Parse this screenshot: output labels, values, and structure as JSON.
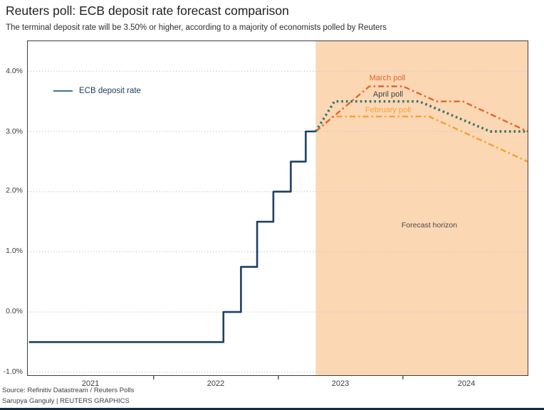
{
  "header": {
    "title": "Reuters poll: ECB deposit rate forecast comparison",
    "subtitle": "The terminal deposit rate will be 3.50% or higher, according to a majority of economists polled by Reuters"
  },
  "legend": {
    "ecb_label": "ECB deposit rate"
  },
  "chart_data": {
    "type": "line",
    "title": "Reuters poll: ECB deposit rate forecast comparison",
    "xlabel": "",
    "ylabel": "",
    "xlim": [
      2020.99,
      2025.0
    ],
    "ylim": [
      -1.05,
      4.5
    ],
    "grid": "dotted horizontal",
    "y_gridlines": [
      -1,
      0,
      1,
      2,
      3,
      4
    ],
    "y_tick_labels": [
      "4.0%",
      "3.0%",
      "2.0%",
      "1.0%",
      "0.0%",
      "-1.0%"
    ],
    "x_tick_years": [
      2022,
      2023,
      2024
    ],
    "x_tick_labels": [
      "2021",
      "2022",
      "2023",
      "2024"
    ],
    "forecast_region": {
      "start": 2023.3,
      "end": 2025.0,
      "fill": "#fbd7b4",
      "label": "Forecast horizon"
    },
    "series": [
      {
        "name": "ECB deposit rate",
        "color": "#1d4063",
        "style": "solid",
        "label_color": "#1d3c5e",
        "points": [
          [
            2021.0,
            -0.5
          ],
          [
            2022.56,
            -0.5
          ],
          [
            2022.56,
            0.0
          ],
          [
            2022.7,
            0.0
          ],
          [
            2022.7,
            0.75
          ],
          [
            2022.83,
            0.75
          ],
          [
            2022.83,
            1.5
          ],
          [
            2022.96,
            1.5
          ],
          [
            2022.96,
            2.0
          ],
          [
            2023.1,
            2.0
          ],
          [
            2023.1,
            2.5
          ],
          [
            2023.22,
            2.5
          ],
          [
            2023.22,
            3.0
          ],
          [
            2023.3,
            3.0
          ]
        ]
      },
      {
        "name": "February poll",
        "color": "#f5a02f",
        "style": "dashdot",
        "label_color": "#f7a339",
        "points": [
          [
            2023.3,
            3.0
          ],
          [
            2023.44,
            3.25
          ],
          [
            2024.21,
            3.25
          ],
          [
            2025.0,
            2.5
          ]
        ]
      },
      {
        "name": "March poll",
        "color": "#e2662e",
        "style": "dashdot",
        "label_color": "#e2662e",
        "points": [
          [
            2023.3,
            3.0
          ],
          [
            2023.73,
            3.75
          ],
          [
            2024.0,
            3.75
          ],
          [
            2024.27,
            3.5
          ],
          [
            2024.48,
            3.5
          ],
          [
            2025.0,
            3.0
          ]
        ]
      },
      {
        "name": "April poll",
        "color": "#39726b",
        "style": "dotted",
        "label_color": "#413f3f",
        "points": [
          [
            2023.3,
            3.0
          ],
          [
            2023.45,
            3.5
          ],
          [
            2024.13,
            3.5
          ],
          [
            2024.7,
            3.0
          ],
          [
            2025.0,
            3.0
          ]
        ]
      }
    ]
  },
  "footer": {
    "source": "Source: Refinitiv Datastream / Reuters Polls",
    "credit": "Sarupya Ganguly | REUTERS GRAPHICS"
  }
}
